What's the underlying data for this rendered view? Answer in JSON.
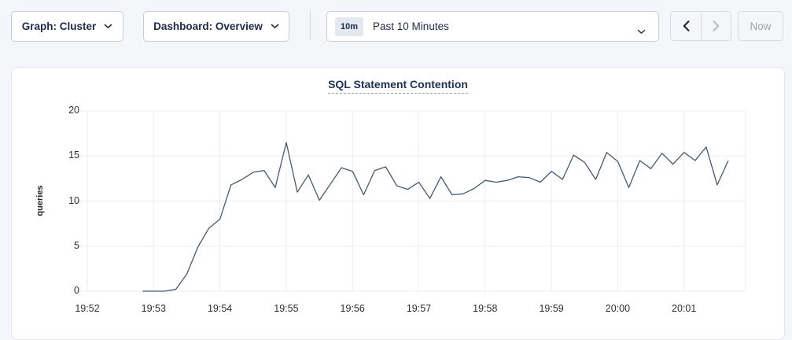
{
  "toolbar": {
    "graph_dropdown": {
      "label": "Graph: Cluster"
    },
    "dashboard_dropdown": {
      "label": "Dashboard: Overview"
    },
    "time_range": {
      "badge": "10m",
      "label": "Past 10 Minutes"
    },
    "now_button": {
      "label": "Now"
    }
  },
  "colors": {
    "page_bg": "#f4f6fa",
    "panel_bg": "#ffffff",
    "accent_navy": "#1e2b4a",
    "disabled_gray": "#b4bac7",
    "grid": "#ededf0",
    "line": "#475872",
    "title": "#1c3256"
  },
  "chart_data": {
    "type": "line",
    "title": "SQL Statement Contention",
    "xlabel": "",
    "ylabel": "queries",
    "ylim": [
      0,
      20
    ],
    "yticks": [
      0,
      5,
      10,
      15,
      20
    ],
    "xtick_labels": [
      "19:52",
      "19:53",
      "19:54",
      "19:55",
      "19:56",
      "19:57",
      "19:58",
      "19:59",
      "20:00",
      "20:01"
    ],
    "x_start_time": "19:52:50",
    "x_step_seconds": 10,
    "grid": true,
    "legend_position": "none",
    "line_color": "#475872",
    "series": [
      {
        "name": "queries",
        "values": [
          0,
          0,
          0,
          0.2,
          1.9,
          4.9,
          7.0,
          8.0,
          11.8,
          12.4,
          13.2,
          13.4,
          11.5,
          16.5,
          11.0,
          12.9,
          10.1,
          11.9,
          13.7,
          13.3,
          10.7,
          13.4,
          13.8,
          11.7,
          11.3,
          12.1,
          10.3,
          12.7,
          10.7,
          10.8,
          11.4,
          12.3,
          12.1,
          12.3,
          12.7,
          12.6,
          12.1,
          13.3,
          12.4,
          15.1,
          14.3,
          12.4,
          15.4,
          14.4,
          11.5,
          14.5,
          13.6,
          15.3,
          14.1,
          15.4,
          14.5,
          16.0,
          11.8,
          14.5
        ]
      }
    ]
  }
}
